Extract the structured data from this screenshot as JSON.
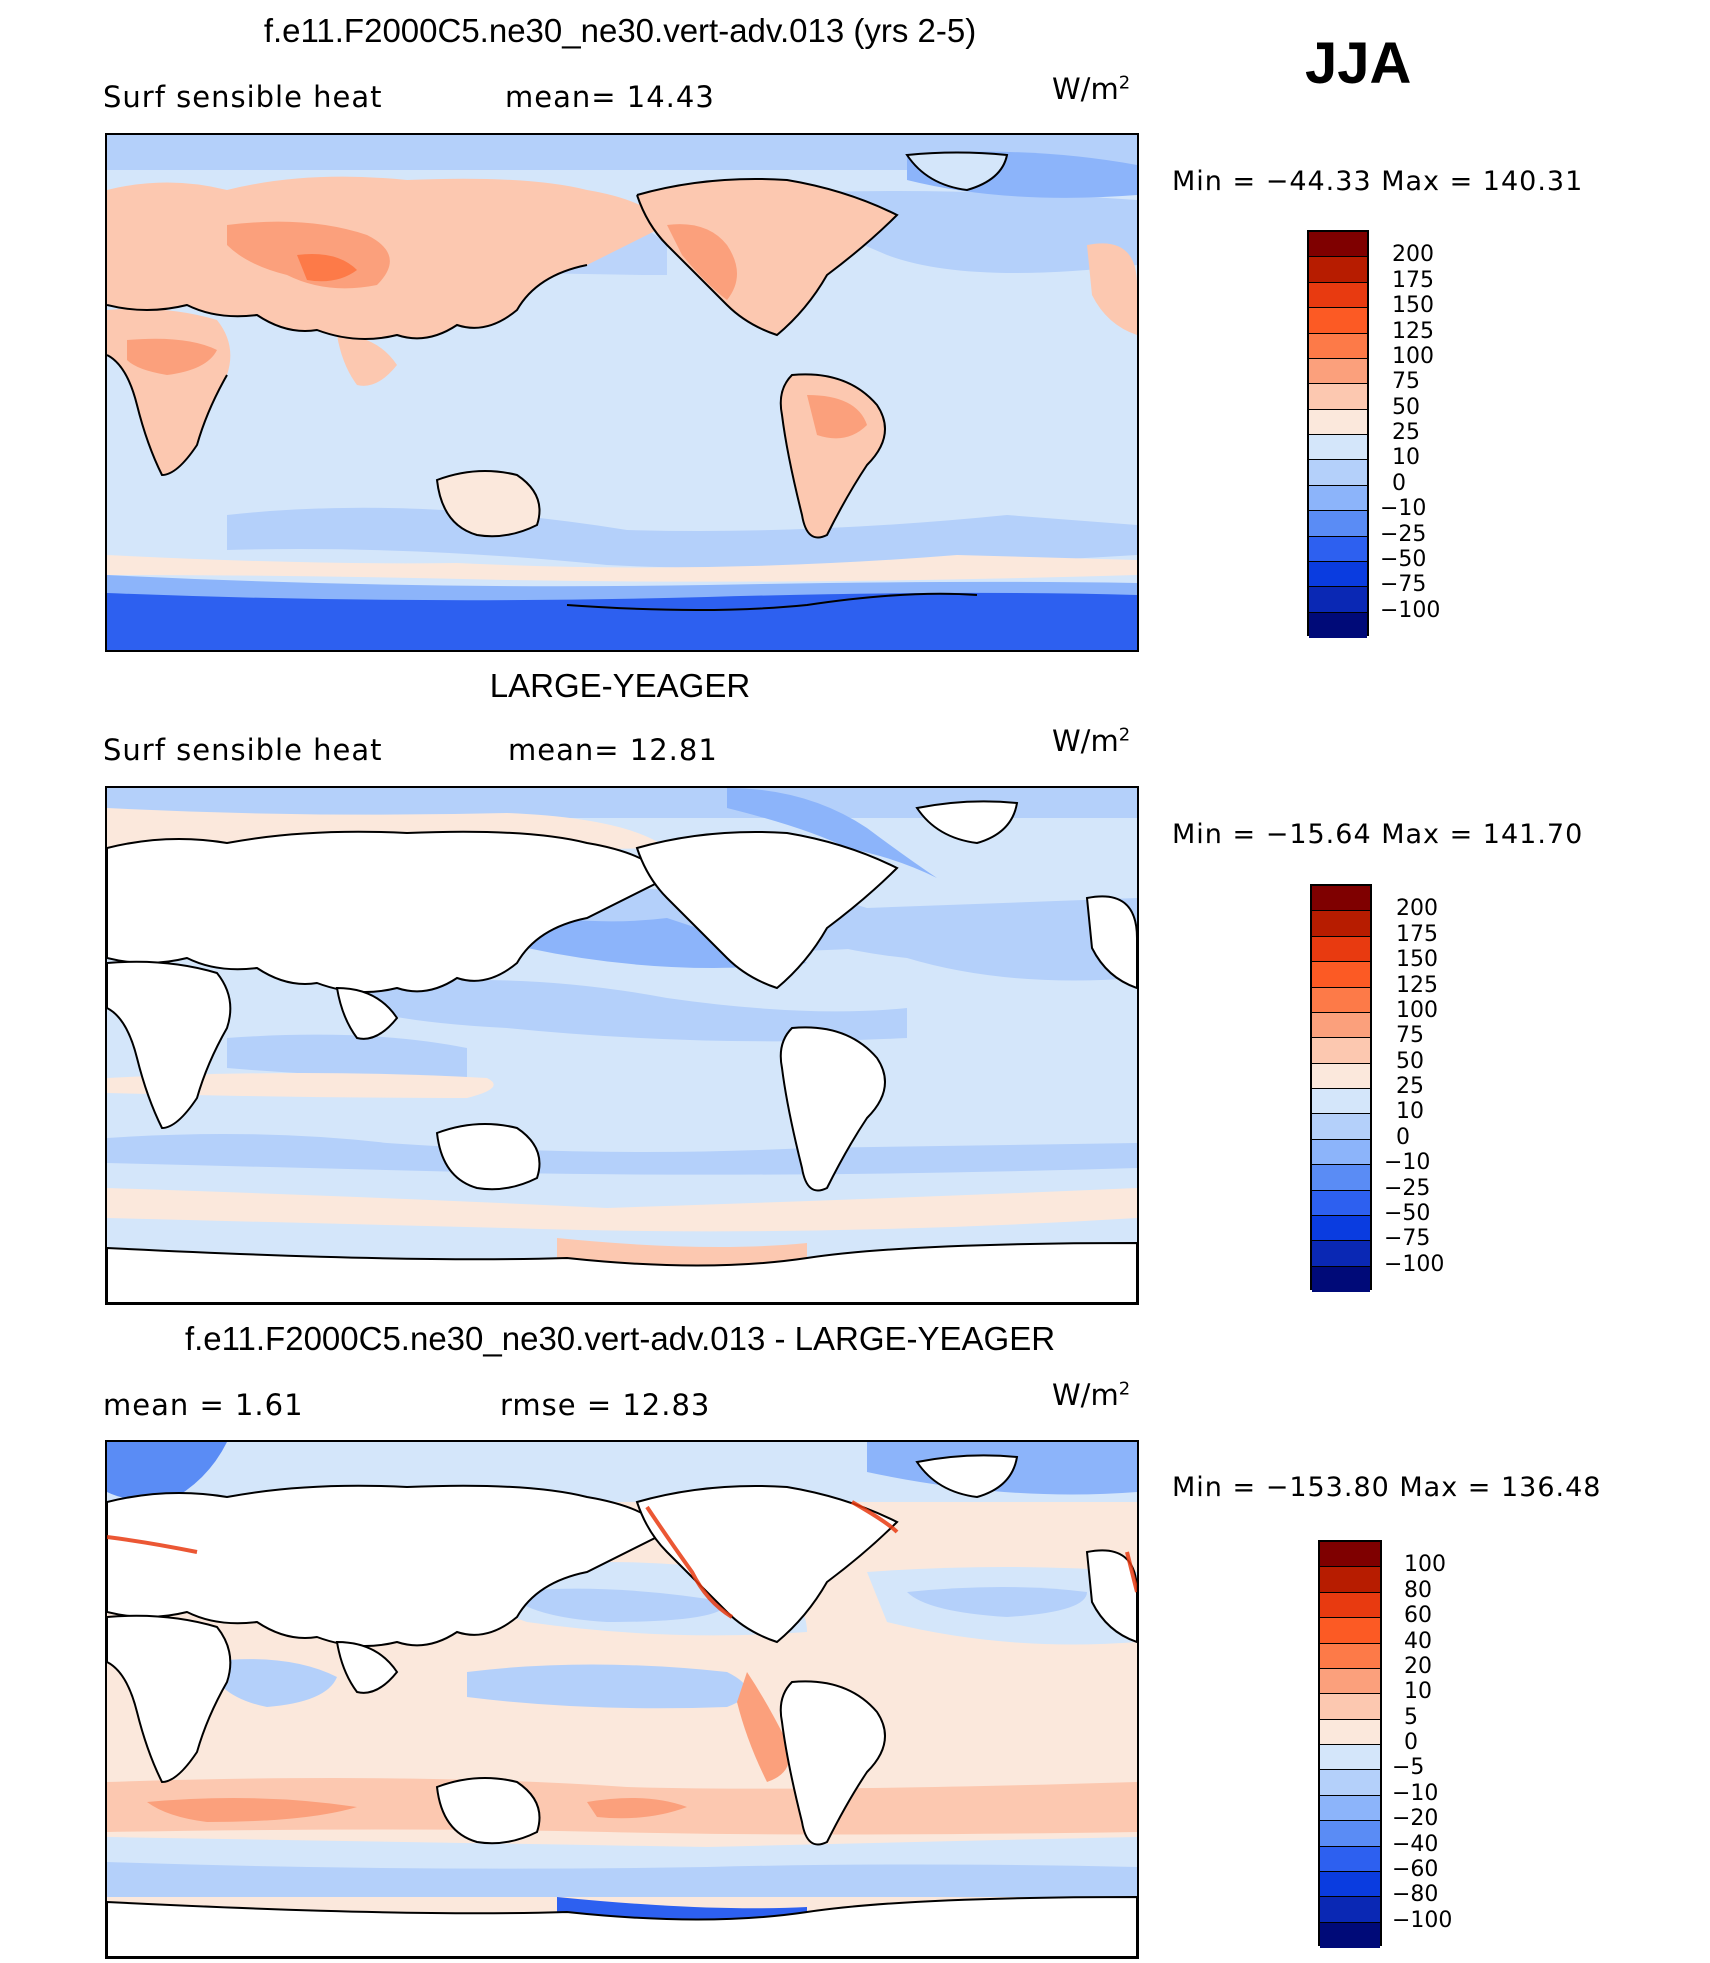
{
  "season": "JJA",
  "panels": [
    {
      "title": "f.e11.F2000C5.ne30_ne30.vert-adv.013 (yrs 2-5)",
      "left_text": "Surf sensible heat",
      "stat1": "mean=   14.43",
      "stat2": "",
      "units": "W/m",
      "units_sup": "2",
      "minmax": "Min  =  −44.33  Max  =  140.31",
      "land": "field",
      "levels": [
        "200",
        "175",
        "150",
        "125",
        "100",
        "75",
        "50",
        "25",
        "10",
        "0",
        "−10",
        "−25",
        "−50",
        "−75",
        "−100"
      ]
    },
    {
      "title": "LARGE-YEAGER",
      "left_text": "Surf sensible heat",
      "stat1": "mean=   12.81",
      "stat2": "",
      "units": "W/m",
      "units_sup": "2",
      "minmax": "Min  =  −15.64  Max  =  141.70",
      "land": "blank",
      "levels": [
        "200",
        "175",
        "150",
        "125",
        "100",
        "75",
        "50",
        "25",
        "10",
        "0",
        "−10",
        "−25",
        "−50",
        "−75",
        "−100"
      ]
    },
    {
      "title": "f.e11.F2000C5.ne30_ne30.vert-adv.013 - LARGE-YEAGER",
      "left_text": "mean =     1.61",
      "stat1": "rmse  =    12.83",
      "stat2": "",
      "units": "W/m",
      "units_sup": "2",
      "minmax": "Min  =  −153.80  Max  =  136.48",
      "land": "blank",
      "levels": [
        "100",
        "80",
        "60",
        "40",
        "20",
        "10",
        "5",
        "0",
        "−5",
        "−10",
        "−20",
        "−40",
        "−60",
        "−80",
        "−100"
      ]
    }
  ],
  "colors": {
    "scale": [
      "#7f0000",
      "#b71c00",
      "#e83a10",
      "#fc5a24",
      "#fd7a48",
      "#fba07c",
      "#fcc8b0",
      "#fbe8dc",
      "#d4e6fa",
      "#b4d0fa",
      "#8cb4fa",
      "#5a8cf5",
      "#2d60f0",
      "#0a3ce0",
      "#0a28b4",
      "#000a78"
    ]
  },
  "chart_data": [
    {
      "type": "heatmap",
      "title": "f.e11.F2000C5.ne30_ne30.vert-adv.013 (yrs 2-5)",
      "variable": "Surf sensible heat",
      "units": "W/m2",
      "mean": 14.43,
      "min": -44.33,
      "max": 140.31,
      "contour_levels": [
        -100,
        -75,
        -50,
        -25,
        -10,
        0,
        10,
        25,
        50,
        75,
        100,
        125,
        150,
        175,
        200
      ]
    },
    {
      "type": "heatmap",
      "title": "LARGE-YEAGER",
      "variable": "Surf sensible heat",
      "units": "W/m2",
      "mean": 12.81,
      "min": -15.64,
      "max": 141.7,
      "contour_levels": [
        -100,
        -75,
        -50,
        -25,
        -10,
        0,
        10,
        25,
        50,
        75,
        100,
        125,
        150,
        175,
        200
      ]
    },
    {
      "type": "heatmap",
      "title": "f.e11.F2000C5.ne30_ne30.vert-adv.013 - LARGE-YEAGER",
      "units": "W/m2",
      "mean": 1.61,
      "rmse": 12.83,
      "min": -153.8,
      "max": 136.48,
      "contour_levels": [
        -100,
        -80,
        -60,
        -40,
        -20,
        -10,
        -5,
        0,
        5,
        10,
        20,
        40,
        60,
        80,
        100
      ]
    }
  ]
}
